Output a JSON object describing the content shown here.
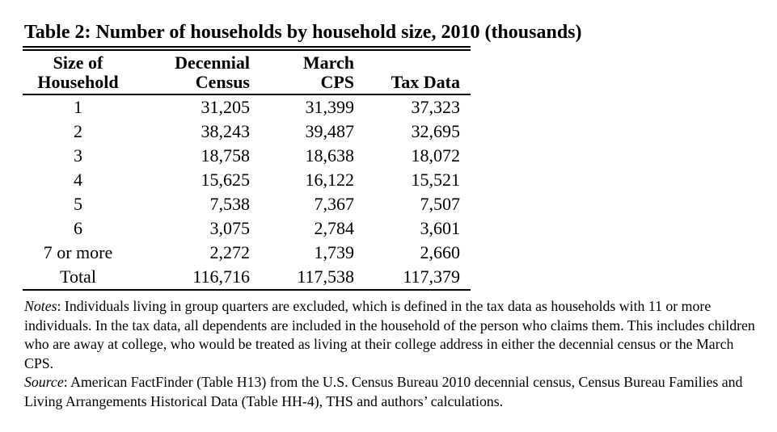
{
  "page": {
    "title": "Table 2: Number of households by household size, 2010 (thousands)"
  },
  "table": {
    "columns": [
      {
        "line1": "Size of",
        "line2": "Household"
      },
      {
        "line1": "Decennial",
        "line2": "Census"
      },
      {
        "line1": "March",
        "line2": "CPS"
      },
      {
        "line1": "",
        "line2": "Tax Data"
      }
    ],
    "rows": [
      {
        "size": "1",
        "decennial_census": "31,205",
        "march_cps": "31,399",
        "tax_data": "37,323"
      },
      {
        "size": "2",
        "decennial_census": "38,243",
        "march_cps": "39,487",
        "tax_data": "32,695"
      },
      {
        "size": "3",
        "decennial_census": "18,758",
        "march_cps": "18,638",
        "tax_data": "18,072"
      },
      {
        "size": "4",
        "decennial_census": "15,625",
        "march_cps": "16,122",
        "tax_data": "15,521"
      },
      {
        "size": "5",
        "decennial_census": "7,538",
        "march_cps": "7,367",
        "tax_data": "7,507"
      },
      {
        "size": "6",
        "decennial_census": "3,075",
        "march_cps": "2,784",
        "tax_data": "3,601"
      },
      {
        "size": "7 or more",
        "decennial_census": "2,272",
        "march_cps": "1,739",
        "tax_data": "2,660"
      },
      {
        "size": "Total",
        "decennial_census": "116,716",
        "march_cps": "117,538",
        "tax_data": "117,379"
      }
    ]
  },
  "notes": {
    "lead": "Notes",
    "text": ": Individuals living in group quarters are excluded, which is defined in the tax data as households with 11 or more individuals. In the tax data, all dependents are included in the household of the person who claims them. This includes children who are away at college, who would be treated as living at their college address in either the decennial census or the March CPS."
  },
  "source": {
    "lead": "Source",
    "text": ": American FactFinder (Table H13) from the U.S. Census Bureau 2010 decennial census, Census Bureau Families and Living Arrangements Historical Data (Table HH-4), THS and authors’ calculations."
  },
  "colors": {
    "text": "#000000",
    "background": "#ffffff",
    "rule": "#000000"
  }
}
